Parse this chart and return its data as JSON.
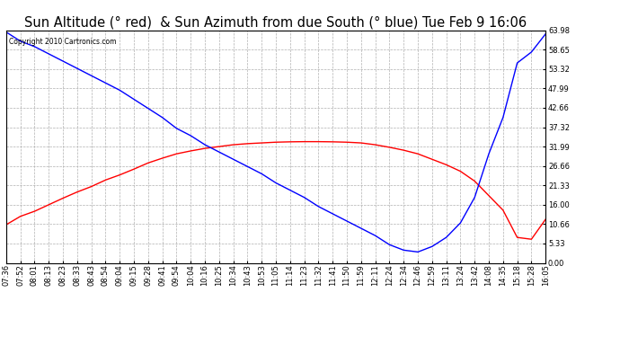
{
  "title": "Sun Altitude (° red)  & Sun Azimuth from due South (° blue) Tue Feb 9 16:06",
  "copyright": "Copyright 2010 Cartronics.com",
  "yticks": [
    0.0,
    5.33,
    10.66,
    16.0,
    21.33,
    26.66,
    31.99,
    37.32,
    42.66,
    47.99,
    53.32,
    58.65,
    63.98
  ],
  "ymin": 0.0,
  "ymax": 63.98,
  "xtick_labels": [
    "07:36",
    "07:52",
    "08:01",
    "08:13",
    "08:23",
    "08:33",
    "08:43",
    "08:54",
    "09:04",
    "09:15",
    "09:28",
    "09:41",
    "09:54",
    "10:04",
    "10:16",
    "10:25",
    "10:34",
    "10:43",
    "10:53",
    "11:05",
    "11:14",
    "11:23",
    "11:32",
    "11:41",
    "11:50",
    "11:59",
    "12:11",
    "12:24",
    "12:34",
    "12:46",
    "12:59",
    "13:11",
    "13:24",
    "13:42",
    "14:08",
    "14:35",
    "15:18",
    "15:28",
    "16:05"
  ],
  "altitude_color": "#ff0000",
  "azimuth_color": "#0000ff",
  "bg_color": "#ffffff",
  "grid_color": "#b0b0b0",
  "title_fontsize": 10.5,
  "tick_fontsize": 6.0,
  "altitude_values": [
    10.5,
    12.8,
    14.2,
    16.0,
    17.8,
    19.5,
    21.0,
    22.8,
    24.2,
    25.8,
    27.5,
    28.8,
    30.0,
    30.8,
    31.5,
    32.0,
    32.5,
    32.8,
    33.0,
    33.2,
    33.3,
    33.35,
    33.35,
    33.3,
    33.2,
    33.0,
    32.5,
    31.8,
    31.0,
    30.0,
    28.5,
    27.0,
    25.2,
    22.5,
    18.5,
    14.5,
    7.0,
    6.5,
    12.0
  ],
  "azimuth_values": [
    63.5,
    61.0,
    59.5,
    57.5,
    55.5,
    53.5,
    51.5,
    49.5,
    47.5,
    45.0,
    42.5,
    40.0,
    37.0,
    35.0,
    32.5,
    30.5,
    28.5,
    26.5,
    24.5,
    22.0,
    20.0,
    18.0,
    15.5,
    13.5,
    11.5,
    9.5,
    7.5,
    5.0,
    3.5,
    3.0,
    4.5,
    7.0,
    11.0,
    18.0,
    30.0,
    40.0,
    55.0,
    58.0,
    63.0
  ]
}
